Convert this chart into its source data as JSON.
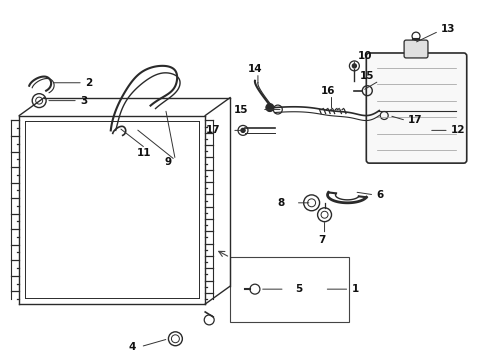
{
  "bg_color": "#ffffff",
  "line_color": "#2a2a2a",
  "label_color": "#111111",
  "label_size": 7.5
}
